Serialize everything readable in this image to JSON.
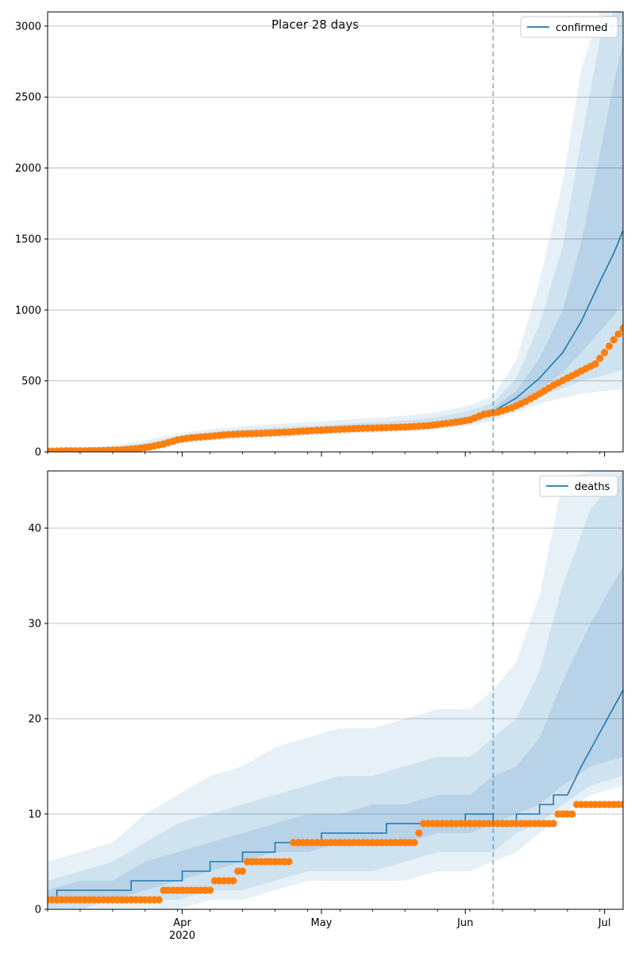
{
  "figure_title": "Placer 28 days",
  "colors": {
    "model": "#1f77b4",
    "observed": "#ff7f0e",
    "band": "#1f77b4",
    "grid": "#b0b0b0",
    "vline": "#1f77b4"
  },
  "x_axis": {
    "start_date": "2020-03-03",
    "end_date": "2020-07-05",
    "major_ticks": [
      {
        "date": "2020-04-01",
        "label": "Apr",
        "sublabel": "2020"
      },
      {
        "date": "2020-05-01",
        "label": "May",
        "sublabel": ""
      },
      {
        "date": "2020-06-01",
        "label": "Jun",
        "sublabel": ""
      },
      {
        "date": "2020-07-01",
        "label": "Jul",
        "sublabel": ""
      }
    ],
    "vline_date": "2020-06-07"
  },
  "chart_data": [
    {
      "type": "line",
      "name": "confirmed",
      "legend_label": "confirmed",
      "legend": "top-right",
      "ylim": [
        0,
        3100
      ],
      "yticks": [
        "0",
        "500",
        "1000",
        "1500",
        "2000",
        "2500",
        "3000"
      ],
      "ytick_values": [
        0,
        500,
        1000,
        1500,
        2000,
        2500,
        3000
      ],
      "grid": "horizontal",
      "model": {
        "x": [
          "2020-03-03",
          "2020-03-10",
          "2020-03-17",
          "2020-03-24",
          "2020-03-31",
          "2020-04-07",
          "2020-04-14",
          "2020-04-21",
          "2020-04-28",
          "2020-05-05",
          "2020-05-12",
          "2020-05-19",
          "2020-05-26",
          "2020-06-02",
          "2020-06-07",
          "2020-06-12",
          "2020-06-17",
          "2020-06-22",
          "2020-06-26",
          "2020-06-30",
          "2020-07-03",
          "2020-07-05"
        ],
        "y": [
          8,
          10,
          15,
          38,
          85,
          110,
          125,
          135,
          145,
          155,
          165,
          175,
          190,
          225,
          285,
          380,
          520,
          700,
          920,
          1200,
          1400,
          1560
        ]
      },
      "bands": [
        {
          "level": "outer",
          "upper": [
            20,
            25,
            45,
            80,
            130,
            160,
            180,
            195,
            210,
            225,
            240,
            255,
            280,
            330,
            390,
            650,
            1200,
            1900,
            2700,
            3200,
            3300,
            3300
          ],
          "lower": [
            3,
            4,
            5,
            15,
            55,
            80,
            95,
            105,
            115,
            125,
            135,
            145,
            160,
            185,
            220,
            280,
            340,
            380,
            410,
            425,
            435,
            440
          ]
        },
        {
          "level": "middle",
          "upper": [
            15,
            18,
            32,
            60,
            110,
            140,
            158,
            170,
            182,
            195,
            208,
            222,
            245,
            290,
            345,
            520,
            900,
            1450,
            2200,
            2900,
            3200,
            3300
          ],
          "lower": [
            5,
            6,
            9,
            25,
            68,
            92,
            108,
            118,
            128,
            138,
            148,
            158,
            172,
            200,
            245,
            310,
            390,
            450,
            500,
            530,
            560,
            580
          ]
        },
        {
          "level": "inner",
          "upper": [
            11,
            13,
            22,
            48,
            97,
            122,
            137,
            148,
            158,
            169,
            180,
            191,
            210,
            253,
            310,
            430,
            660,
            1000,
            1480,
            2100,
            2600,
            2900
          ],
          "lower": [
            6,
            8,
            12,
            30,
            76,
            100,
            116,
            126,
            136,
            146,
            156,
            166,
            180,
            212,
            262,
            340,
            440,
            560,
            700,
            850,
            960,
            1040
          ]
        }
      ],
      "observed": {
        "x": [
          "2020-03-03",
          "2020-03-07",
          "2020-03-11",
          "2020-03-15",
          "2020-03-19",
          "2020-03-22",
          "2020-03-25",
          "2020-03-28",
          "2020-03-31",
          "2020-04-03",
          "2020-04-07",
          "2020-04-11",
          "2020-04-15",
          "2020-04-19",
          "2020-04-24",
          "2020-04-29",
          "2020-05-04",
          "2020-05-09",
          "2020-05-14",
          "2020-05-19",
          "2020-05-24",
          "2020-05-29",
          "2020-06-02",
          "2020-06-05",
          "2020-06-08",
          "2020-06-11",
          "2020-06-14",
          "2020-06-17",
          "2020-06-20",
          "2020-06-23",
          "2020-06-26",
          "2020-06-29",
          "2020-07-01",
          "2020-07-03",
          "2020-07-05"
        ],
        "y": [
          5,
          8,
          8,
          10,
          15,
          22,
          35,
          55,
          85,
          100,
          110,
          122,
          128,
          132,
          140,
          150,
          158,
          165,
          170,
          175,
          185,
          205,
          225,
          265,
          280,
          310,
          355,
          410,
          470,
          520,
          570,
          620,
          700,
          790,
          870
        ]
      }
    },
    {
      "type": "line",
      "name": "deaths",
      "legend_label": "deaths",
      "legend": "top-right",
      "ylim": [
        0,
        46
      ],
      "yticks": [
        "0",
        "10",
        "20",
        "30",
        "40"
      ],
      "ytick_values": [
        0,
        10,
        20,
        30,
        40
      ],
      "grid": "horizontal",
      "model": {
        "x": [
          "2020-03-03",
          "2020-03-05",
          "2020-03-05",
          "2020-03-21",
          "2020-03-21",
          "2020-04-01",
          "2020-04-01",
          "2020-04-07",
          "2020-04-07",
          "2020-04-14",
          "2020-04-14",
          "2020-04-21",
          "2020-04-21",
          "2020-05-01",
          "2020-05-01",
          "2020-05-15",
          "2020-05-15",
          "2020-06-01",
          "2020-06-01",
          "2020-06-07",
          "2020-06-07",
          "2020-06-12",
          "2020-06-12",
          "2020-06-17",
          "2020-06-17",
          "2020-06-20",
          "2020-06-20",
          "2020-06-23",
          "2020-06-25",
          "2020-06-26",
          "2020-07-05"
        ],
        "y": [
          1,
          1,
          2,
          2,
          3,
          3,
          4,
          4,
          5,
          5,
          6,
          6,
          7,
          7,
          8,
          8,
          9,
          9,
          10,
          10,
          9,
          9,
          10,
          10,
          11,
          11,
          12,
          12,
          14,
          15,
          23
        ]
      },
      "bands": [
        {
          "level": "outer",
          "upper": [
            5,
            6,
            7,
            10,
            12,
            14,
            15,
            17,
            18,
            19,
            19,
            20,
            21,
            21,
            23,
            26,
            33,
            45,
            46,
            46
          ],
          "lower": [
            0,
            0,
            0,
            0,
            0,
            1,
            1,
            2,
            3,
            3,
            3,
            3,
            4,
            4,
            5,
            6,
            8,
            10,
            12,
            13
          ]
        },
        {
          "level": "middle",
          "upper": [
            3,
            4,
            5,
            7,
            9,
            10,
            11,
            12,
            13,
            14,
            14,
            15,
            16,
            16,
            18,
            20,
            25,
            34,
            42,
            46
          ],
          "lower": [
            0,
            0,
            1,
            1,
            1,
            2,
            2,
            3,
            4,
            4,
            4,
            5,
            6,
            6,
            6,
            8,
            9,
            11,
            13,
            14
          ]
        },
        {
          "level": "inner",
          "upper": [
            2,
            3,
            3,
            5,
            6,
            7,
            8,
            9,
            10,
            10,
            11,
            11,
            12,
            12,
            14,
            15,
            18,
            24,
            30,
            36
          ],
          "lower": [
            1,
            1,
            1,
            2,
            3,
            4,
            5,
            6,
            6,
            7,
            7,
            7,
            8,
            8,
            9,
            10,
            11,
            13,
            15,
            16
          ]
        }
      ],
      "band_x": [
        "2020-03-03",
        "2020-03-10",
        "2020-03-17",
        "2020-03-24",
        "2020-03-31",
        "2020-04-07",
        "2020-04-14",
        "2020-04-21",
        "2020-04-28",
        "2020-05-05",
        "2020-05-12",
        "2020-05-19",
        "2020-05-26",
        "2020-06-02",
        "2020-06-07",
        "2020-06-12",
        "2020-06-17",
        "2020-06-22",
        "2020-06-28",
        "2020-07-05"
      ],
      "observed": {
        "x": [
          "2020-03-03",
          "2020-03-27",
          "2020-03-28",
          "2020-04-03",
          "2020-04-04",
          "2020-04-07",
          "2020-04-08",
          "2020-04-12",
          "2020-04-13",
          "2020-04-14",
          "2020-04-15",
          "2020-04-16",
          "2020-04-25",
          "2020-05-22",
          "2020-05-23",
          "2020-06-06",
          "2020-06-07",
          "2020-06-20",
          "2020-06-21",
          "2020-06-24",
          "2020-06-25",
          "2020-07-05"
        ],
        "y": [
          1,
          1,
          2,
          2,
          2,
          2,
          3,
          3,
          4,
          4,
          5,
          5,
          7,
          8,
          9,
          9,
          9,
          9,
          10,
          10,
          11,
          11
        ]
      }
    }
  ]
}
